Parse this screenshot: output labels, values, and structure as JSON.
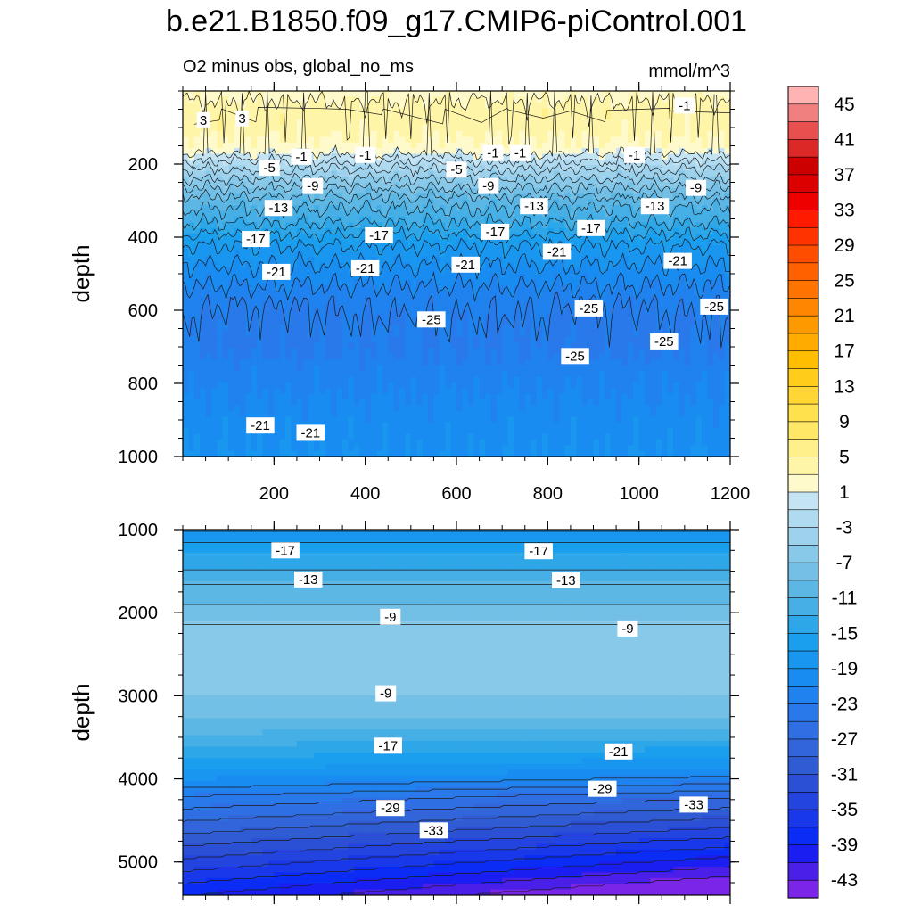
{
  "chart_data": {
    "type": "contour",
    "title": "b.e21.B1850.f09_g17.CMIP6-piControl.001",
    "subtitle_left": "O2 minus obs, global_no_ms",
    "subtitle_right": "mmol/m^3",
    "x_axis": {
      "ticks": [
        200,
        400,
        600,
        800,
        1000,
        1200
      ],
      "tick_labels": [
        "200",
        "400",
        "600",
        "800",
        "1000",
        "1200"
      ],
      "range": [
        0,
        1200
      ]
    },
    "panels": [
      {
        "name": "upper",
        "ylabel": "depth",
        "ylim": [
          0,
          1000
        ],
        "y_ticks": [
          200,
          400,
          600,
          800,
          1000
        ],
        "y_tick_labels": [
          "200",
          "400",
          "600",
          "800",
          "1000"
        ],
        "depth_profile": [
          [
            0,
            0
          ],
          [
            50,
            2
          ],
          [
            100,
            2
          ],
          [
            160,
            0
          ],
          [
            200,
            -4
          ],
          [
            250,
            -8
          ],
          [
            300,
            -12
          ],
          [
            360,
            -15
          ],
          [
            420,
            -19
          ],
          [
            500,
            -22
          ],
          [
            560,
            -24
          ],
          [
            620,
            -25
          ],
          [
            700,
            -25
          ],
          [
            760,
            -24
          ],
          [
            830,
            -23
          ],
          [
            900,
            -22
          ],
          [
            1000,
            -21
          ]
        ],
        "contour_labels": [
          {
            "text": "3",
            "x": 45,
            "y": 80
          },
          {
            "text": "3",
            "x": 130,
            "y": 75
          },
          {
            "text": "-1",
            "x": 1100,
            "y": 40
          },
          {
            "text": "-1",
            "x": 260,
            "y": 180
          },
          {
            "text": "-1",
            "x": 400,
            "y": 175
          },
          {
            "text": "-1",
            "x": 680,
            "y": 170
          },
          {
            "text": "-1",
            "x": 740,
            "y": 170
          },
          {
            "text": "-1",
            "x": 990,
            "y": 175
          },
          {
            "text": "-5",
            "x": 190,
            "y": 210
          },
          {
            "text": "-5",
            "x": 600,
            "y": 215
          },
          {
            "text": "-9",
            "x": 285,
            "y": 260
          },
          {
            "text": "-9",
            "x": 670,
            "y": 260
          },
          {
            "text": "-9",
            "x": 1125,
            "y": 265
          },
          {
            "text": "-13",
            "x": 210,
            "y": 320
          },
          {
            "text": "-13",
            "x": 770,
            "y": 315
          },
          {
            "text": "-13",
            "x": 1035,
            "y": 315
          },
          {
            "text": "-17",
            "x": 160,
            "y": 405
          },
          {
            "text": "-17",
            "x": 430,
            "y": 395
          },
          {
            "text": "-17",
            "x": 685,
            "y": 385
          },
          {
            "text": "-17",
            "x": 895,
            "y": 375
          },
          {
            "text": "-21",
            "x": 205,
            "y": 495
          },
          {
            "text": "-21",
            "x": 400,
            "y": 485
          },
          {
            "text": "-21",
            "x": 620,
            "y": 475
          },
          {
            "text": "-21",
            "x": 820,
            "y": 440
          },
          {
            "text": "-21",
            "x": 1085,
            "y": 465
          },
          {
            "text": "-25",
            "x": 545,
            "y": 625
          },
          {
            "text": "-25",
            "x": 890,
            "y": 595
          },
          {
            "text": "-25",
            "x": 1165,
            "y": 590
          },
          {
            "text": "-25",
            "x": 1055,
            "y": 685
          },
          {
            "text": "-25",
            "x": 860,
            "y": 725
          },
          {
            "text": "-21",
            "x": 170,
            "y": 915
          },
          {
            "text": "-21",
            "x": 280,
            "y": 935
          }
        ]
      },
      {
        "name": "lower",
        "ylabel": "depth",
        "ylim": [
          1000,
          5400
        ],
        "y_ticks": [
          1000,
          2000,
          3000,
          4000,
          5000
        ],
        "y_tick_labels": [
          "1000",
          "2000",
          "3000",
          "4000",
          "5000"
        ],
        "depth_profile": [
          [
            1000,
            -21
          ],
          [
            1300,
            -17
          ],
          [
            1650,
            -13
          ],
          [
            2000,
            -10
          ],
          [
            2400,
            -7
          ],
          [
            2800,
            -8
          ],
          [
            3000,
            -9
          ],
          [
            3300,
            -11
          ],
          [
            3600,
            -15
          ],
          [
            3900,
            -19
          ],
          [
            4200,
            -25
          ],
          [
            4500,
            -29
          ],
          [
            4800,
            -33
          ],
          [
            5100,
            -37
          ],
          [
            5400,
            -41
          ]
        ],
        "contour_labels": [
          {
            "text": "-17",
            "x": 225,
            "y": 1250
          },
          {
            "text": "-17",
            "x": 780,
            "y": 1260
          },
          {
            "text": "-13",
            "x": 275,
            "y": 1600
          },
          {
            "text": "-13",
            "x": 840,
            "y": 1610
          },
          {
            "text": "-9",
            "x": 455,
            "y": 2050
          },
          {
            "text": "-9",
            "x": 975,
            "y": 2190
          },
          {
            "text": "-9",
            "x": 445,
            "y": 2970
          },
          {
            "text": "-17",
            "x": 450,
            "y": 3600
          },
          {
            "text": "-21",
            "x": 955,
            "y": 3670
          },
          {
            "text": "-29",
            "x": 455,
            "y": 4350
          },
          {
            "text": "-29",
            "x": 920,
            "y": 4120
          },
          {
            "text": "-33",
            "x": 550,
            "y": 4620
          },
          {
            "text": "-33",
            "x": 1120,
            "y": 4310
          }
        ]
      }
    ],
    "colorbar": {
      "levels": [
        45,
        43,
        41,
        39,
        37,
        35,
        33,
        31,
        29,
        27,
        25,
        23,
        21,
        19,
        17,
        15,
        13,
        11,
        9,
        7,
        5,
        3,
        1,
        -1,
        -3,
        -5,
        -7,
        -9,
        -11,
        -13,
        -15,
        -17,
        -19,
        -21,
        -23,
        -25,
        -27,
        -29,
        -31,
        -33,
        -35,
        -37,
        -39,
        -41,
        -43,
        -45
      ],
      "labels": [
        "45",
        "41",
        "37",
        "33",
        "29",
        "25",
        "21",
        "17",
        "13",
        "9",
        "5",
        "1",
        "-3",
        "-7",
        "-11",
        "-15",
        "-19",
        "-23",
        "-27",
        "-31",
        "-35",
        "-39",
        "-43"
      ],
      "colors": [
        "#ffb3b3",
        "#f08080",
        "#e85050",
        "#dd2828",
        "#cc0000",
        "#dd0000",
        "#ee0000",
        "#ff1a00",
        "#ff3300",
        "#ff4d00",
        "#ff6000",
        "#ff7300",
        "#ff8600",
        "#ff9900",
        "#ffab00",
        "#ffbe00",
        "#ffcd1a",
        "#ffd633",
        "#ffe04d",
        "#ffe866",
        "#fff08c",
        "#fff5a8",
        "#fffacc",
        "#c4e4f4",
        "#b0daf0",
        "#9dd1ec",
        "#88c8e9",
        "#73bfe6",
        "#5cb7e5",
        "#45afe6",
        "#2ea7e9",
        "#1a9fee",
        "#1996f0",
        "#188cf0",
        "#1f82ee",
        "#2979ea",
        "#2f6fe3",
        "#3365da",
        "#305cd3",
        "#2b50d6",
        "#2444df",
        "#1838ea",
        "#0a2cf5",
        "#1a1ef0",
        "#4a1fe8",
        "#7a25e8"
      ]
    }
  }
}
